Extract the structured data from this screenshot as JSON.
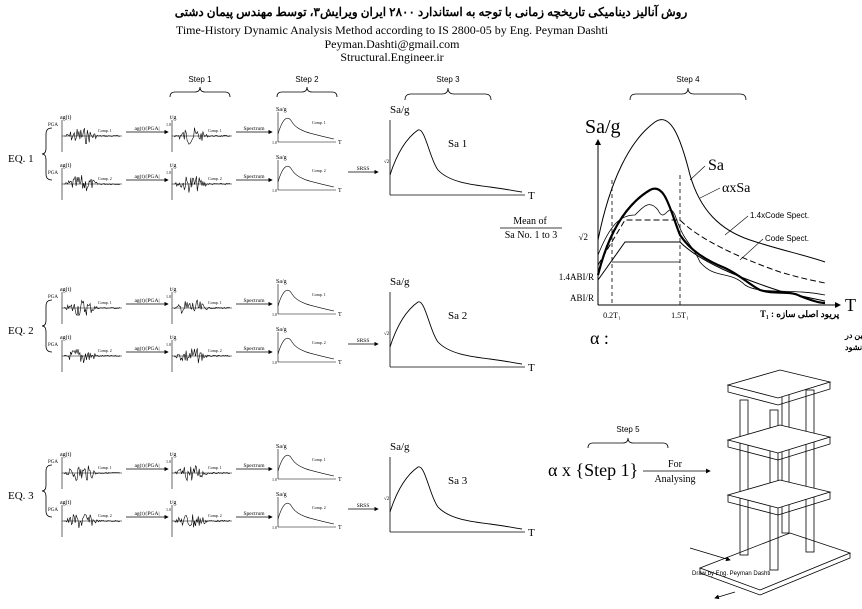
{
  "header": {
    "persian_title": "روش آنالیز دینامیکی تاریخچه زمانی با توجه به استاندارد ۲۸۰۰ ایران ویرایش۳، توسط مهندس پیمان دشتی",
    "english_title": "Time-History Dynamic Analysis Method according to IS 2800-05 by Eng. Peyman Dashti",
    "email": "Peyman.Dashti@gmail.com",
    "website": "Structural.Engineer.ir"
  },
  "steps": {
    "step1": "Step 1",
    "step2": "Step 2",
    "step3": "Step 3",
    "step4": "Step 4",
    "step5": "Step 5"
  },
  "earthquakes": [
    {
      "label": "EQ. 1",
      "sa_label": "Sa 1"
    },
    {
      "label": "EQ. 2",
      "sa_label": "Sa 2"
    },
    {
      "label": "EQ. 3",
      "sa_label": "Sa 3"
    }
  ],
  "mini_labels": {
    "ag": "ag(t)",
    "tg": "t/g",
    "pga": "PGA",
    "comp1": "Comp. 1",
    "comp2": "Comp. 2",
    "ag_over_pga": "ag(t)/|PGA|",
    "spectrum": "Spectrum",
    "sag": "Sa/g",
    "one": "1.0",
    "t": "T",
    "srss": "SRSS",
    "sqrt2": "√2"
  },
  "mean_label": {
    "line1": "Mean of",
    "line2": "Sa No. 1 to 3"
  },
  "step4": {
    "y_axis": "Sa/g",
    "x_axis": "T",
    "sa": "Sa",
    "alpha_sa": "αxSa",
    "code_14": "1.4xCode Spect.",
    "code": "Code Spect.",
    "sqrt2": "√2",
    "abr14": "1.4ABI/R",
    "abr": "ABI/R",
    "t02": "0.2T₁",
    "t15": "1.5T₁",
    "period_label": "پریود اصلی سازه : T₁",
    "alpha_symbol": "α :",
    "alpha_desc_1": "این ضریب باید به گونه ای انتخاب شود که طیف میانگین در",
    "alpha_desc_2": "محدوده مرز مشخص شده کمتر از منحنی خط چین نشود"
  },
  "step5": {
    "formula_alpha": "α x {Step 1}",
    "for": "For",
    "analysing": "Analysing"
  },
  "credit": "Draw by Eng. Peyman Dashti"
}
